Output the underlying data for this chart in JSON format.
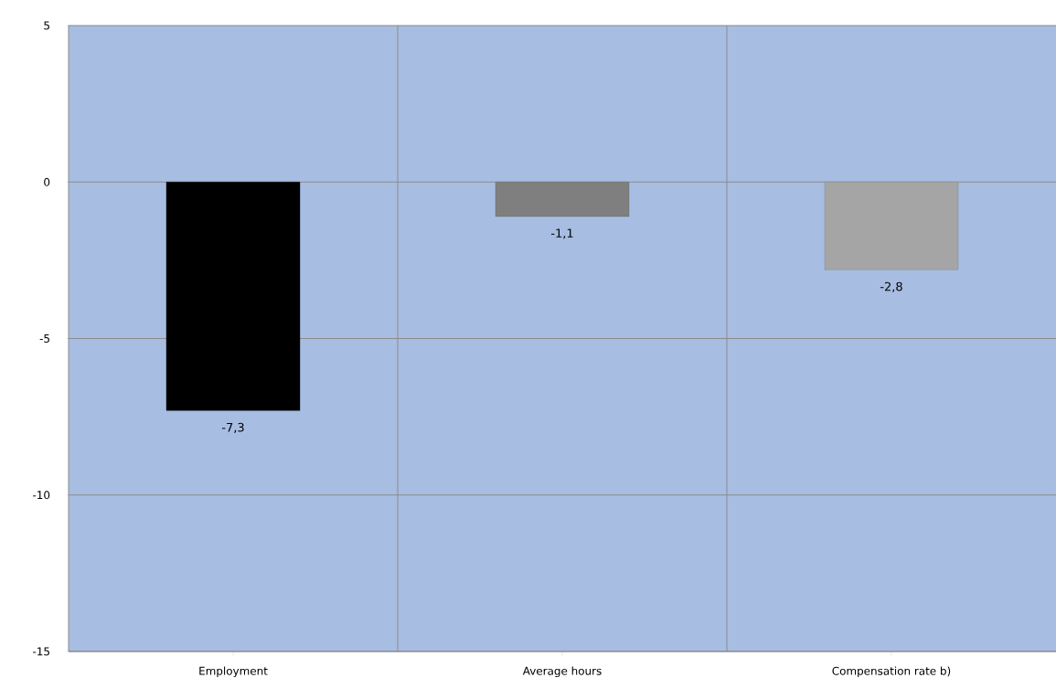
{
  "chart_data": {
    "type": "bar",
    "categories": [
      "Employment",
      "Average hours",
      "Compensation rate b)"
    ],
    "values": [
      -7.3,
      -1.1,
      -2.8
    ],
    "colors": [
      "#000000",
      "#7f7f7f",
      "#a5a5a5"
    ],
    "value_labels": [
      "-7,3",
      "-1,1",
      "-2,8"
    ],
    "ylim": [
      -15,
      5
    ],
    "yticks": [
      -15,
      -10,
      -5,
      0,
      5
    ],
    "grid": true
  }
}
